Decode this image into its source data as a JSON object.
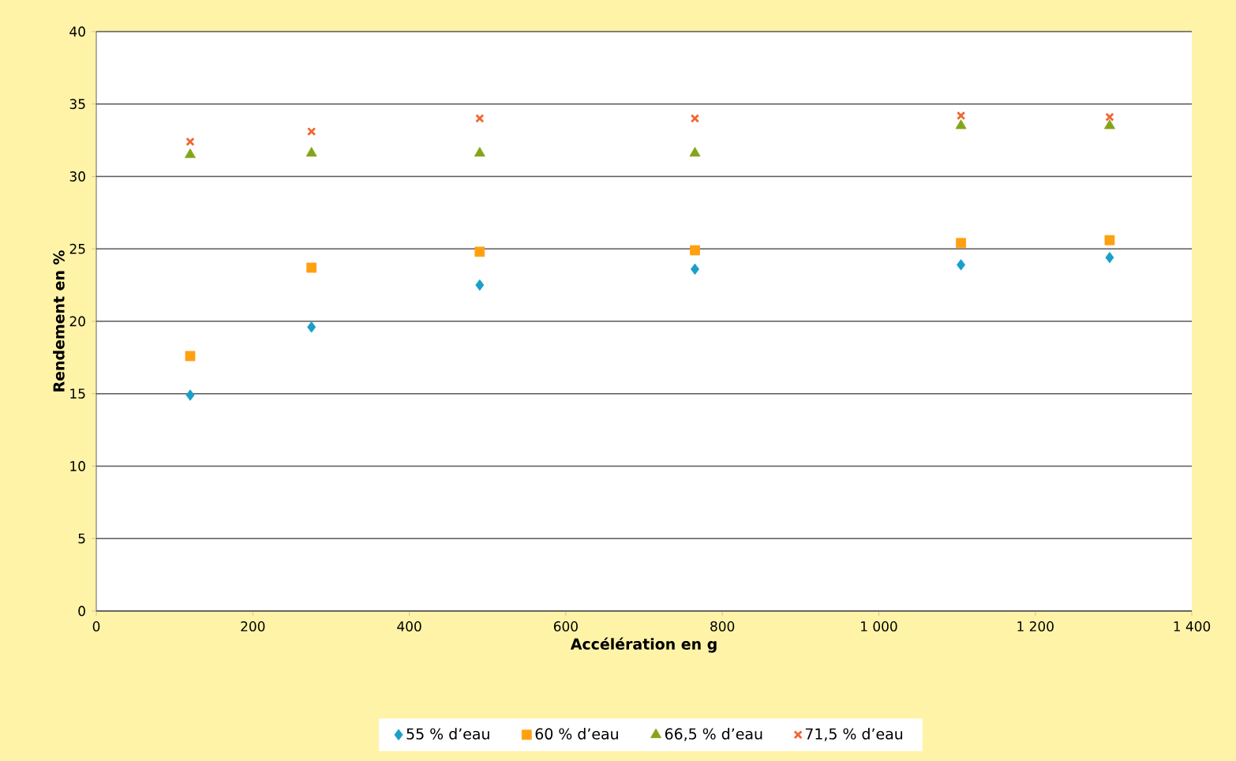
{
  "chart_data": {
    "type": "scatter",
    "xlabel": "Accélération en g",
    "ylabel": "Rendement en %",
    "x": [
      120,
      275,
      490,
      765,
      1105,
      1295
    ],
    "series": [
      {
        "name": "55 % d’eau",
        "color": "#1a9fc9",
        "marker": "diamond",
        "values": [
          14.9,
          19.6,
          22.5,
          23.6,
          23.9,
          24.4
        ]
      },
      {
        "name": "60 % d’eau",
        "color": "#ffa010",
        "marker": "square",
        "values": [
          17.6,
          23.7,
          24.8,
          24.9,
          25.4,
          25.6
        ]
      },
      {
        "name": "66,5 % d’eau",
        "color": "#84a51a",
        "marker": "triangle",
        "values": [
          31.5,
          31.6,
          31.6,
          31.6,
          33.5,
          33.5
        ]
      },
      {
        "name": "71,5 % d’eau",
        "color": "#f26430",
        "marker": "cross",
        "values": [
          32.4,
          33.1,
          34.0,
          34.0,
          34.2,
          34.1
        ]
      }
    ],
    "xlim": [
      0,
      1400
    ],
    "ylim": [
      0,
      40
    ],
    "xticks": [
      0,
      200,
      400,
      600,
      800,
      {
        "value": 1000,
        "label": "1 000"
      },
      {
        "value": 1200,
        "label": "1 200"
      },
      {
        "value": 1400,
        "label": "1 400"
      }
    ],
    "yticks": [
      0,
      5,
      10,
      15,
      20,
      25,
      30,
      35,
      40
    ],
    "grid": "y",
    "legend": "bottom"
  }
}
